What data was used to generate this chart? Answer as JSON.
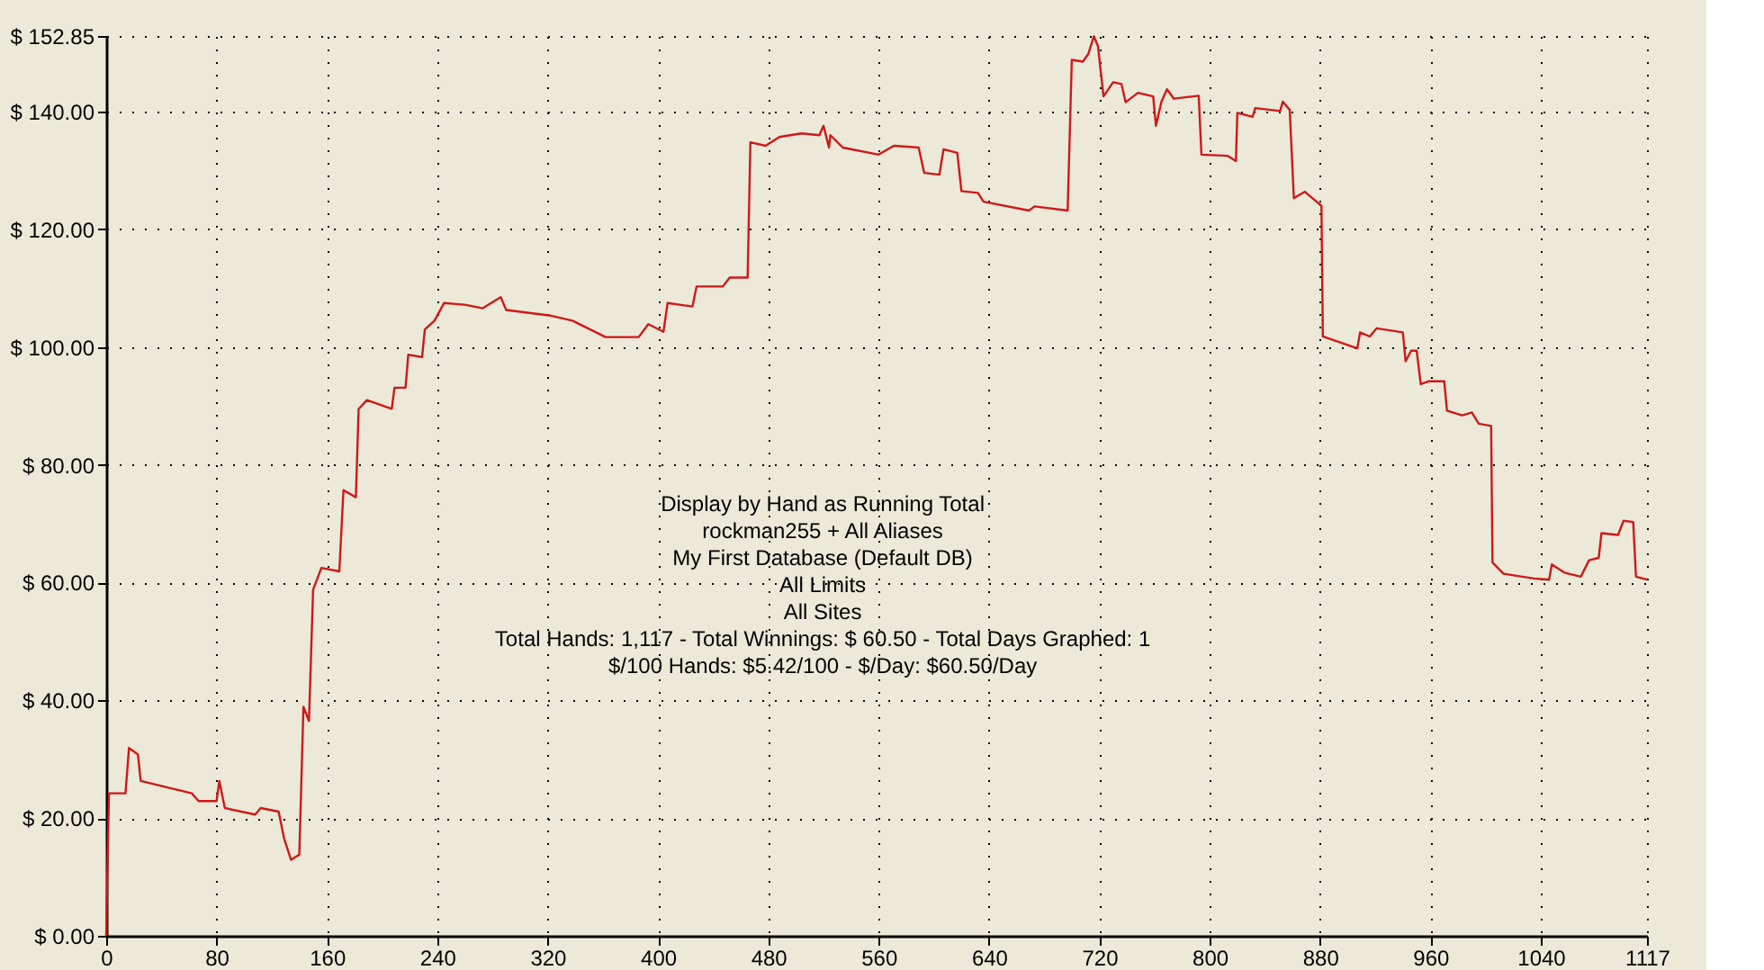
{
  "chart_data": {
    "type": "line",
    "x": [
      0,
      1,
      2,
      14,
      16.5,
      23,
      25,
      62,
      67,
      80,
      82,
      86,
      108,
      112,
      125,
      129,
      134,
      140,
      143,
      147,
      150,
      156,
      169,
      172,
      181,
      183,
      189,
      207,
      209,
      217,
      219,
      229,
      231,
      238,
      245,
      260,
      273,
      286,
      290,
      321,
      338,
      362,
      386,
      393,
      404,
      407,
      425,
      428,
      447,
      452,
      465,
      467,
      478,
      488,
      504,
      517,
      520,
      524,
      525,
      534,
      560,
      571,
      589,
      593,
      604,
      607,
      617,
      620,
      632,
      636,
      669,
      673,
      697,
      700,
      708,
      712,
      716,
      719,
      723,
      730,
      736,
      739,
      748,
      759,
      761,
      765,
      769,
      774,
      792,
      794,
      813,
      819,
      820,
      831,
      833,
      851,
      853,
      858,
      861,
      869,
      878,
      881,
      882,
      907,
      909,
      916,
      921,
      940,
      942,
      946,
      950,
      953,
      959,
      970,
      972,
      983,
      990,
      995,
      1004,
      1005,
      1013,
      1035,
      1046,
      1048,
      1057,
      1069,
      1075,
      1082,
      1084,
      1096,
      1100,
      1107,
      1109,
      1117
    ],
    "series": [
      {
        "color": "#d01818",
        "values": [
          0,
          12.5,
          24.2,
          24.2,
          31.9,
          30.8,
          26.3,
          24.2,
          22.9,
          22.9,
          26.3,
          21.7,
          20.6,
          21.7,
          21.1,
          16.5,
          12.9,
          13.8,
          38.9,
          36.5,
          58.8,
          62.5,
          61.9,
          75.7,
          74.5,
          89.5,
          91,
          89.5,
          93.1,
          93.1,
          98.7,
          98.3,
          103,
          104.5,
          107.5,
          107.2,
          106.6,
          108.5,
          106.3,
          105.4,
          104.5,
          101.7,
          101.7,
          103.9,
          102.6,
          107.5,
          106.9,
          110.3,
          110.3,
          111.8,
          111.8,
          134.8,
          134.2,
          135.7,
          136.3,
          136,
          137.6,
          133.9,
          136,
          133.9,
          132.7,
          134.2,
          133.9,
          129.6,
          129.3,
          133.6,
          133,
          126.5,
          126.2,
          124.7,
          123.2,
          123.9,
          123.2,
          148.8,
          148.5,
          149.8,
          152.8,
          151.1,
          142.6,
          145,
          144.7,
          141.6,
          143.2,
          142.6,
          137.6,
          141.7,
          143.8,
          142.2,
          142.7,
          132.7,
          132.5,
          131.6,
          139.8,
          139.1,
          140.6,
          140.1,
          141.7,
          140.3,
          125.3,
          126.4,
          124.6,
          124,
          101.8,
          99.8,
          102.5,
          101.8,
          103.2,
          102.5,
          97.6,
          99.4,
          99.4,
          93.7,
          94.2,
          94.2,
          89.2,
          88.4,
          88.9,
          87,
          86.6,
          63.4,
          61.5,
          60.7,
          60.5,
          63.1,
          61.7,
          61,
          63.8,
          64.2,
          68.4,
          68.1,
          70.5,
          70.3,
          61,
          60.5
        ]
      }
    ],
    "xlim": [
      0,
      1117
    ],
    "xticks": [
      0,
      80,
      160,
      240,
      320,
      400,
      480,
      560,
      640,
      720,
      800,
      880,
      960,
      1040,
      1117
    ],
    "ylim": [
      0,
      152.85
    ],
    "yticks": [
      {
        "value": 0,
        "label": "$ 0.00"
      },
      {
        "value": 20,
        "label": "$ 20.00"
      },
      {
        "value": 40,
        "label": "$ 40.00"
      },
      {
        "value": 60,
        "label": "$ 60.00"
      },
      {
        "value": 80,
        "label": "$ 80.00"
      },
      {
        "value": 100,
        "label": "$ 100.00"
      },
      {
        "value": 120,
        "label": "$ 120.00"
      },
      {
        "value": 140,
        "label": "$ 140.00"
      },
      {
        "value": 152.85,
        "label": "$ 152.85"
      }
    ],
    "grid": true,
    "annotations": [
      "Display by Hand as Running Total",
      "rockman255 + All Aliases",
      "My First Database (Default DB)",
      "All Limits",
      "All Sites",
      "Total Hands: 1,117 - Total Winnings: $ 60.50 - Total Days Graphed: 1",
      "$/100 Hands: $5.42/100 - $/Day: $60.50/Day"
    ]
  }
}
